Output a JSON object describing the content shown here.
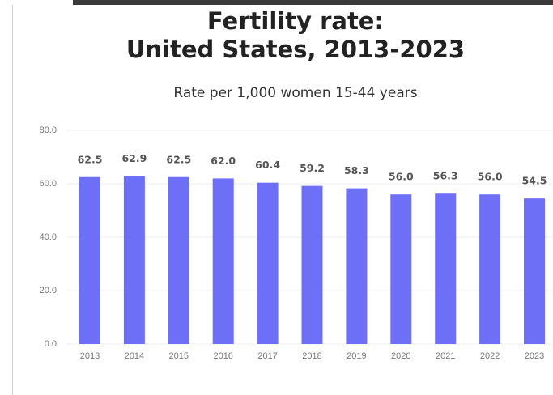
{
  "chart_data": {
    "type": "bar",
    "title": "Fertility rate:",
    "title_line2": "United States, 2013-2023",
    "subtitle": "Rate per 1,000 women 15-44 years",
    "categories": [
      "2013",
      "2014",
      "2015",
      "2016",
      "2017",
      "2018",
      "2019",
      "2020",
      "2021",
      "2022",
      "2023"
    ],
    "values": [
      62.5,
      62.9,
      62.5,
      62,
      60.4,
      59.2,
      58.3,
      56,
      56.3,
      56,
      54.5
    ],
    "value_labels": [
      "62.5",
      "62.9",
      "62.5",
      "62.0",
      "60.4",
      "59.2",
      "58.3",
      "56.0",
      "56.3",
      "56.0",
      "54.5"
    ],
    "color": "#6d70f6",
    "ylim": [
      0,
      80
    ],
    "yticks": [
      {
        "value": 0,
        "label": "0.0"
      },
      {
        "value": 20,
        "label": "20.0"
      },
      {
        "value": 40,
        "label": "40.0"
      },
      {
        "value": 60,
        "label": "60.0"
      },
      {
        "value": 80,
        "label": "80.0"
      }
    ],
    "grid": true
  }
}
